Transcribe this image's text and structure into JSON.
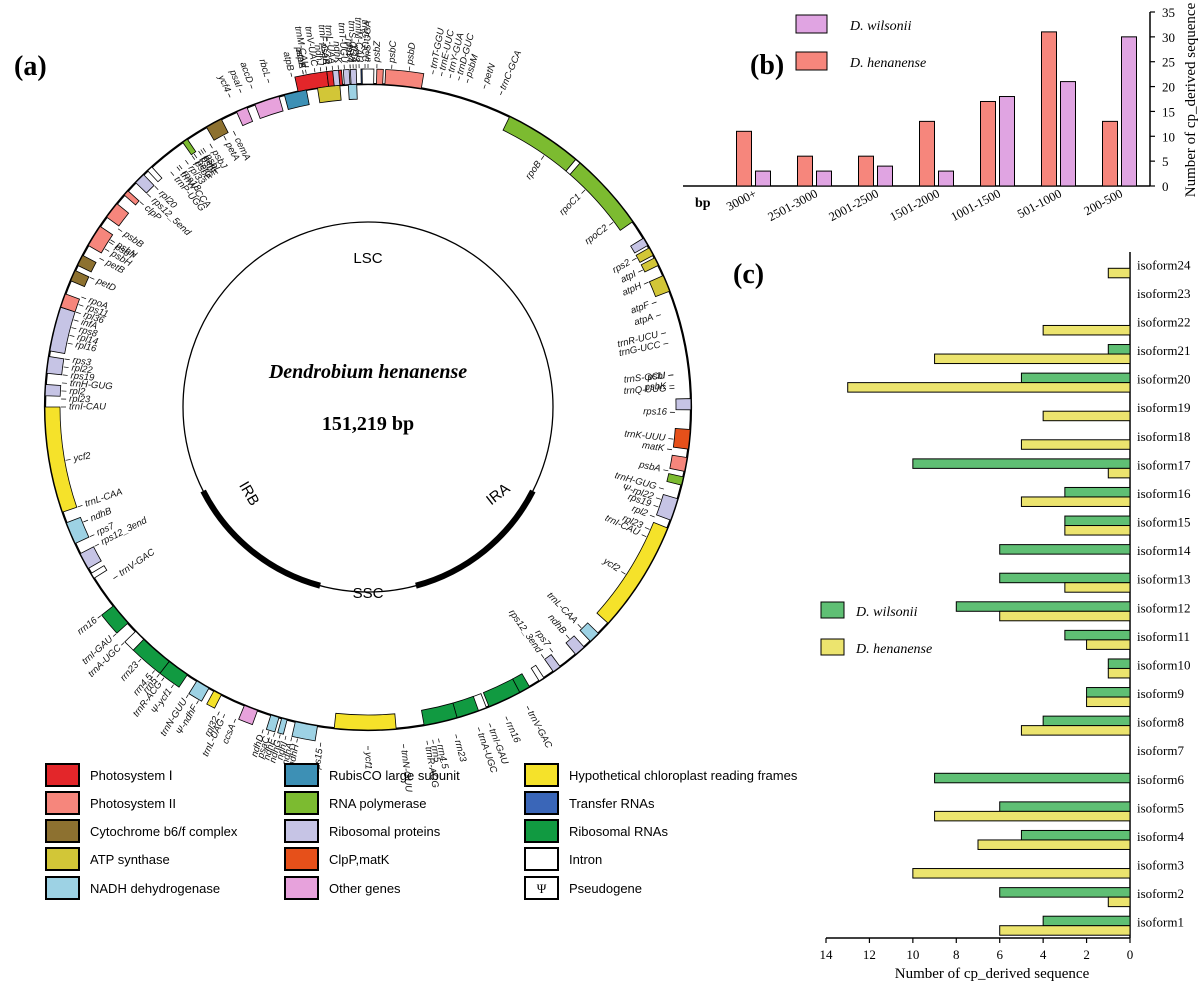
{
  "panel_a": {
    "label": "(a)",
    "species": "Dendrobium henanense",
    "genome_size": "151,219 bp",
    "regions": [
      "LSC",
      "SSC",
      "IRA",
      "IRB"
    ],
    "outer_genes": [
      {
        "name": "psaA",
        "angle": -11
      },
      {
        "name": "psaB",
        "angle": -7
      },
      {
        "name": "rps14",
        "angle": -3
      },
      {
        "name": "trnfM-CAU",
        "angle": -1.5
      },
      {
        "name": "trnS-UGA",
        "angle": 0
      },
      {
        "name": "trnG-UCC",
        "angle": -0.5
      },
      {
        "name": "psbZ",
        "angle": 1.5
      },
      {
        "name": "psbC",
        "angle": 4
      },
      {
        "name": "psbD",
        "angle": 7
      },
      {
        "name": "trnT-GGU",
        "angle": 11
      },
      {
        "name": "trnE-UUC",
        "angle": 12.5
      },
      {
        "name": "trnY-GUA",
        "angle": 14
      },
      {
        "name": "trnD-GUC",
        "angle": 15.5
      },
      {
        "name": "psbM",
        "angle": 17
      },
      {
        "name": "petN",
        "angle": 20
      },
      {
        "name": "trnC-GCA",
        "angle": 23
      },
      {
        "name": "rpoB",
        "angle": 35
      },
      {
        "name": "rpoC1",
        "angle": 45
      },
      {
        "name": "rpoC2",
        "angle": 53
      },
      {
        "name": "rps2",
        "angle": 61
      },
      {
        "name": "atpI",
        "angle": 63.5
      },
      {
        "name": "atpH",
        "angle": 66
      },
      {
        "name": "atpF",
        "angle": 70
      },
      {
        "name": "atpA",
        "angle": 72.5
      },
      {
        "name": "trnR-UCU",
        "angle": 76
      },
      {
        "name": "trnG-UCC",
        "angle": 78
      },
      {
        "name": "trnS-GCU",
        "angle": 84
      },
      {
        "name": "psbI",
        "angle": 84
      },
      {
        "name": "psbK",
        "angle": 86
      },
      {
        "name": "trnQ-UUG",
        "angle": 86.5
      },
      {
        "name": "rps16",
        "angle": 91
      },
      {
        "name": "trnK-UUU",
        "angle": 96
      },
      {
        "name": "matK",
        "angle": 98
      },
      {
        "name": "psbA",
        "angle": 102
      },
      {
        "name": "trnH-GUG",
        "angle": 105.5
      },
      {
        "name": "Ψ-rpl22",
        "angle": 107.5
      },
      {
        "name": "rps19",
        "angle": 109
      },
      {
        "name": "rpl2",
        "angle": 111
      },
      {
        "name": "rpl23",
        "angle": 113.5
      },
      {
        "name": "trnI-CAU",
        "angle": 115
      },
      {
        "name": "ycf2",
        "angle": 123
      },
      {
        "name": "trnL-CAA",
        "angle": 136
      },
      {
        "name": "ndhB",
        "angle": 139
      },
      {
        "name": "rps7",
        "angle": 143
      },
      {
        "name": "rps12_3end",
        "angle": 145
      },
      {
        "name": "trnV-GAC",
        "angle": 152
      },
      {
        "name": "rrn16",
        "angle": 156
      },
      {
        "name": "trnI-GAU",
        "angle": 159
      },
      {
        "name": "trnA-UGC",
        "angle": 161
      },
      {
        "name": "rrn23",
        "angle": 165
      },
      {
        "name": "rrn4.5",
        "angle": 168
      },
      {
        "name": "rrn5",
        "angle": 169
      },
      {
        "name": "trnR-ACG",
        "angle": 170
      },
      {
        "name": "trnN-GUU",
        "angle": 174
      },
      {
        "name": "ycf1",
        "angle": 180
      },
      {
        "name": "rps15",
        "angle": 188
      },
      {
        "name": "ndhH",
        "angle": 192
      },
      {
        "name": "ndhA",
        "angle": 193
      },
      {
        "name": "ndhI",
        "angle": 194
      },
      {
        "name": "ndhG",
        "angle": 195
      },
      {
        "name": "ndhE",
        "angle": 196
      },
      {
        "name": "psaC",
        "angle": 197
      },
      {
        "name": "ndhD",
        "angle": 198
      },
      {
        "name": "ccsA",
        "angle": 203
      },
      {
        "name": "trnL-UAG",
        "angle": 205
      },
      {
        "name": "rpl32",
        "angle": 206
      },
      {
        "name": "Ψ-ndhF",
        "angle": 210
      },
      {
        "name": "trnN-GUU",
        "angle": 212
      },
      {
        "name": "Ψ-ycf1",
        "angle": 215
      },
      {
        "name": "trnR-ACG",
        "angle": 217
      },
      {
        "name": "rrn5",
        "angle": 218
      },
      {
        "name": "rrn4.5",
        "angle": 219
      },
      {
        "name": "rrn23",
        "angle": 222
      },
      {
        "name": "trnA-UGC",
        "angle": 226
      },
      {
        "name": "trnI-GAU",
        "angle": 228
      },
      {
        "name": "rrn16",
        "angle": 232
      },
      {
        "name": "trnV-GAC",
        "angle": 236
      },
      {
        "name": "rps12_3end",
        "angle": 243
      },
      {
        "name": "rps7",
        "angle": 245
      },
      {
        "name": "ndhB",
        "angle": 248
      },
      {
        "name": "trnL-CAA",
        "angle": 251
      },
      {
        "name": "ycf2",
        "angle": 260
      },
      {
        "name": "trnI-CAU",
        "angle": 270
      },
      {
        "name": "rpl23",
        "angle": 271.5
      },
      {
        "name": "rpl2",
        "angle": 273
      },
      {
        "name": "trnH-GUG",
        "angle": 274.5
      },
      {
        "name": "rps19",
        "angle": 276
      },
      {
        "name": "rpl22",
        "angle": 277.5
      },
      {
        "name": "rps3",
        "angle": 279
      },
      {
        "name": "rpl16",
        "angle": 282
      },
      {
        "name": "rpl14",
        "angle": 283.5
      },
      {
        "name": "rps8",
        "angle": 285
      },
      {
        "name": "infA",
        "angle": 286.5
      },
      {
        "name": "rpl36",
        "angle": 288
      },
      {
        "name": "rps11",
        "angle": 289.5
      },
      {
        "name": "rpoA",
        "angle": 291
      },
      {
        "name": "petD",
        "angle": 295
      },
      {
        "name": "petB",
        "angle": 299
      },
      {
        "name": "psbH",
        "angle": 301
      },
      {
        "name": "psbT",
        "angle": 302.5
      },
      {
        "name": "psbN",
        "angle": 303
      },
      {
        "name": "psbB",
        "angle": 305.5
      },
      {
        "name": "clpP",
        "angle": 312
      },
      {
        "name": "rps12_5end",
        "angle": 314
      },
      {
        "name": "rpl20",
        "angle": 316
      },
      {
        "name": "trnP-UGG",
        "angle": 320
      },
      {
        "name": "trnW-CCA",
        "angle": 321.5
      },
      {
        "name": "rps18",
        "angle": 322
      },
      {
        "name": "rpl33",
        "angle": 323.5
      },
      {
        "name": "psbE",
        "angle": 325
      },
      {
        "name": "petG",
        "angle": 325.5
      },
      {
        "name": "psbF",
        "angle": 326.5
      },
      {
        "name": "psbL",
        "angle": 327.5
      },
      {
        "name": "petL",
        "angle": 327
      },
      {
        "name": "psbJ",
        "angle": 329
      },
      {
        "name": "petA",
        "angle": 332
      },
      {
        "name": "cemA",
        "angle": 334
      },
      {
        "name": "ycf4",
        "angle": 336
      },
      {
        "name": "psaI",
        "angle": 338
      },
      {
        "name": "accD",
        "angle": 340
      },
      {
        "name": "rbcL",
        "angle": 343
      },
      {
        "name": "atpB",
        "angle": 347
      },
      {
        "name": "atpE",
        "angle": 349
      },
      {
        "name": "trnM-CAU",
        "angle": 349.5
      },
      {
        "name": "trnV-UAC",
        "angle": 351
      },
      {
        "name": "ndhJ",
        "angle": 352
      },
      {
        "name": "trnF-GAA",
        "angle": 353
      },
      {
        "name": "trnL-UAA",
        "angle": 354
      },
      {
        "name": "ndhK",
        "angle": 355
      },
      {
        "name": "trnT-UGU",
        "angle": 356
      },
      {
        "name": "rps4",
        "angle": 357
      },
      {
        "name": "trnS-GGA",
        "angle": 357.5
      },
      {
        "name": "ycf3",
        "angle": 358
      }
    ],
    "legend": [
      {
        "label": "Photosystem Ⅰ",
        "color": "#e3262a"
      },
      {
        "label": "Photosystem II",
        "color": "#f6867c"
      },
      {
        "label": "Cytochrome b6/f complex",
        "color": "#8d7130"
      },
      {
        "label": "ATP synthase",
        "color": "#d2c637"
      },
      {
        "label": "NADH dehydrogenase",
        "color": "#9dd2e4"
      },
      {
        "label": "RubisCO large subunit",
        "color": "#3d90b5"
      },
      {
        "label": "RNA polymerase",
        "color": "#7cbb30"
      },
      {
        "label": "Ribosomal proteins",
        "color": "#c6c4e5"
      },
      {
        "label": "ClpP,matK",
        "color": "#e6501a"
      },
      {
        "label": "Other genes",
        "color": "#e7a2dc"
      },
      {
        "label": "Hypothetical chloroplast reading frames",
        "color": "#f5e22a"
      },
      {
        "label": "Transfer RNAs",
        "color": "#3a66b8"
      },
      {
        "label": "Ribosomal RNAs",
        "color": "#119a41"
      },
      {
        "label": "Intron",
        "color": "#ffffff"
      },
      {
        "label": "Pseudogene",
        "color": "#ffffff",
        "symbol": "Ψ"
      }
    ]
  },
  "chart_data": [
    {
      "panel": "(b)",
      "type": "bar",
      "xlabel": "bp",
      "ylabel": "Number of cp_derived sequence",
      "categories": [
        "3000+",
        "2501-3000",
        "2001-2500",
        "1501-2000",
        "1001-1500",
        "501-1000",
        "200-500"
      ],
      "series": [
        {
          "name": "D. henanense",
          "color": "#f6867c",
          "values": [
            11,
            6,
            6,
            13,
            17,
            31,
            13
          ]
        },
        {
          "name": "D. wilsonii",
          "color": "#e0a4e2",
          "values": [
            3,
            3,
            4,
            3,
            18,
            21,
            30
          ]
        }
      ],
      "ylim": [
        0,
        35
      ],
      "yticks": [
        0,
        5,
        10,
        15,
        20,
        25,
        30,
        35
      ],
      "legend": "top-left"
    },
    {
      "panel": "(c)",
      "type": "bar",
      "orientation": "horizontal",
      "xlabel": "Number of cp_derived sequence",
      "categories": [
        "isoform24",
        "isoform23",
        "isoform22",
        "isoform21",
        "isoform20",
        "isoform19",
        "isoform18",
        "isoform17",
        "isoform16",
        "isoform15",
        "isoform14",
        "isoform13",
        "isoform12",
        "isoform11",
        "isoform10",
        "isoform9",
        "isoform8",
        "isoform7",
        "isoform6",
        "isoform5",
        "isoform4",
        "isoform3",
        "isoform2",
        "isoform1"
      ],
      "series": [
        {
          "name": "D. wilsonii",
          "color": "#5fbf74",
          "values": [
            0,
            0,
            0,
            1,
            5,
            0,
            0,
            10,
            3,
            3,
            6,
            6,
            8,
            3,
            1,
            2,
            4,
            0,
            9,
            6,
            5,
            0,
            6,
            4
          ]
        },
        {
          "name": "D. henanense",
          "color": "#ece46e",
          "values": [
            1,
            0,
            4,
            9,
            13,
            4,
            5,
            1,
            5,
            3,
            0,
            3,
            6,
            2,
            1,
            2,
            5,
            0,
            0,
            9,
            7,
            10,
            1,
            6
          ]
        }
      ],
      "xlim": [
        14,
        0
      ],
      "xticks": [
        14,
        12,
        10,
        8,
        6,
        4,
        2,
        0
      ],
      "legend": "middle-left"
    }
  ]
}
